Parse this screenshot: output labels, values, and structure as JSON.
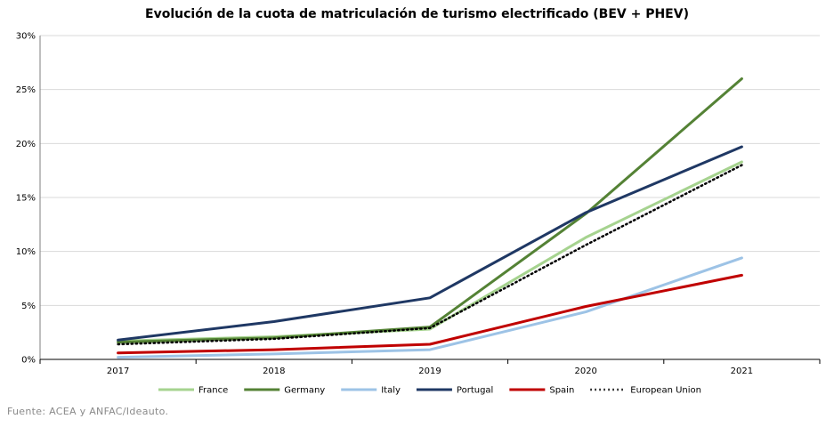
{
  "chart_data": {
    "type": "line",
    "title": "Evolución de la cuota de matriculación de turismo electrificado (BEV + PHEV)",
    "xlabel": "",
    "ylabel": "",
    "categories": [
      "2017",
      "2018",
      "2019",
      "2020",
      "2021"
    ],
    "ylim": [
      0,
      30
    ],
    "yticks": [
      0,
      5,
      10,
      15,
      20,
      25,
      30
    ],
    "ytick_labels": [
      "0%",
      "5%",
      "10%",
      "15%",
      "20%",
      "25%",
      "30%"
    ],
    "grid": "horizontal",
    "legend_position": "bottom",
    "series": [
      {
        "name": "France",
        "color": "#a6d38f",
        "dash": "solid",
        "values": [
          1.7,
          2.1,
          2.8,
          11.3,
          18.3
        ]
      },
      {
        "name": "Germany",
        "color": "#548235",
        "dash": "solid",
        "values": [
          1.6,
          2.0,
          3.0,
          13.5,
          26.0
        ]
      },
      {
        "name": "Italy",
        "color": "#9dc3e6",
        "dash": "solid",
        "values": [
          0.2,
          0.5,
          0.9,
          4.4,
          9.4
        ]
      },
      {
        "name": "Portugal",
        "color": "#1f3864",
        "dash": "solid",
        "values": [
          1.8,
          3.5,
          5.7,
          13.6,
          19.7
        ]
      },
      {
        "name": "Spain",
        "color": "#c00000",
        "dash": "solid",
        "values": [
          0.6,
          0.9,
          1.4,
          4.9,
          7.8
        ]
      },
      {
        "name": "European Union",
        "color": "#000000",
        "dash": "dotted",
        "values": [
          1.4,
          1.9,
          2.9,
          10.6,
          18.0
        ]
      }
    ]
  },
  "source": "Fuente:  ACEA y ANFAC/Ideauto."
}
